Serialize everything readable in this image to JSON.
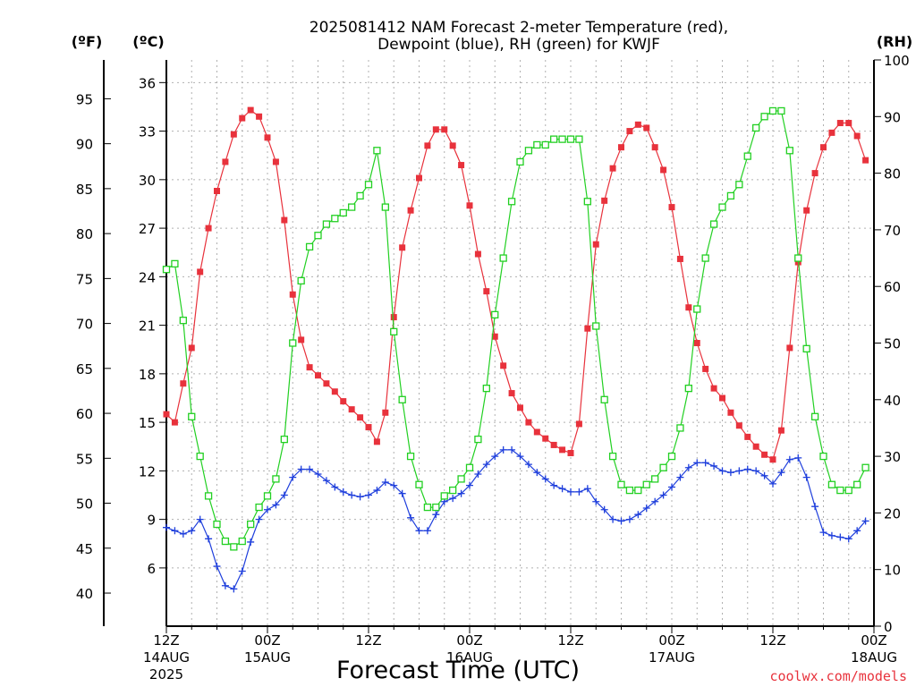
{
  "chart_data": {
    "type": "line",
    "title_line1": "2025081412 NAM Forecast 2-meter Temperature (red),",
    "title_line2": "Dewpoint (blue), RH (green) for KWJF",
    "xlabel": "Forecast Time (UTC)",
    "credit": "coolwx.com/models",
    "x_unit": "forecast hour from 2025-08-14 12Z",
    "x_range": [
      0,
      84
    ],
    "x_ticks": [
      {
        "hour": 0,
        "time": "12Z",
        "date": "14AUG",
        "year": "2025"
      },
      {
        "hour": 12,
        "time": "00Z",
        "date": "15AUG",
        "year": ""
      },
      {
        "hour": 24,
        "time": "12Z",
        "date": "",
        "year": ""
      },
      {
        "hour": 36,
        "time": "00Z",
        "date": "16AUG",
        "year": ""
      },
      {
        "hour": 48,
        "time": "12Z",
        "date": "",
        "year": ""
      },
      {
        "hour": 60,
        "time": "00Z",
        "date": "17AUG",
        "year": ""
      },
      {
        "hour": 72,
        "time": "12Z",
        "date": "",
        "year": ""
      },
      {
        "hour": 84,
        "time": "00Z",
        "date": "18AUG",
        "year": ""
      }
    ],
    "axes": {
      "celsius": {
        "label": "(ºC)",
        "ticks": [
          "6",
          "9",
          "12",
          "15",
          "18",
          "21",
          "24",
          "27",
          "30",
          "33",
          "36"
        ]
      },
      "fahrenheit": {
        "label": "(ºF)",
        "ticks": [
          "40",
          "45",
          "50",
          "55",
          "60",
          "65",
          "70",
          "75",
          "80",
          "85",
          "90",
          "95"
        ]
      },
      "rh": {
        "label": "(RH)",
        "ticks": [
          "0",
          "10",
          "20",
          "30",
          "40",
          "50",
          "60",
          "70",
          "80",
          "90",
          "100"
        ],
        "range": [
          0,
          100
        ]
      },
      "temp_range_c": [
        2.4,
        37.4
      ]
    },
    "grid": true,
    "series": [
      {
        "name": "Temperature",
        "unit": "°C",
        "color": "#e8323c",
        "marker": "filled-square",
        "values": [
          15.5,
          15.0,
          17.4,
          19.6,
          24.3,
          27.0,
          29.3,
          31.1,
          32.8,
          33.8,
          34.3,
          33.9,
          32.6,
          31.1,
          27.5,
          22.9,
          20.1,
          18.4,
          17.9,
          17.4,
          16.9,
          16.3,
          15.8,
          15.3,
          14.7,
          13.8,
          15.6,
          21.5,
          25.8,
          28.1,
          30.1,
          32.1,
          33.1,
          33.1,
          32.1,
          30.9,
          28.4,
          25.4,
          23.1,
          20.3,
          18.5,
          16.8,
          15.9,
          15.0,
          14.4,
          14.0,
          13.6,
          13.3,
          13.1,
          14.9,
          20.8,
          26.0,
          28.7,
          30.7,
          32.0,
          33.0,
          33.4,
          33.2,
          32.0,
          30.6,
          28.3,
          25.1,
          22.1,
          19.9,
          18.3,
          17.1,
          16.5,
          15.6,
          14.8,
          14.1,
          13.5,
          13.0,
          12.7,
          14.5,
          19.6,
          24.9,
          28.1,
          30.4,
          32.0,
          32.9,
          33.5,
          33.5,
          32.7,
          31.2
        ]
      },
      {
        "name": "Dewpoint",
        "unit": "°C",
        "color": "#1f3fdc",
        "marker": "plus",
        "values": [
          8.5,
          8.3,
          8.1,
          8.3,
          9.0,
          7.8,
          6.1,
          4.9,
          4.7,
          5.8,
          7.6,
          9.0,
          9.6,
          9.9,
          10.5,
          11.6,
          12.1,
          12.1,
          11.8,
          11.4,
          11.0,
          10.7,
          10.5,
          10.4,
          10.5,
          10.8,
          11.3,
          11.1,
          10.6,
          9.1,
          8.3,
          8.3,
          9.3,
          10.1,
          10.3,
          10.6,
          11.1,
          11.8,
          12.4,
          12.9,
          13.3,
          13.3,
          12.9,
          12.4,
          11.9,
          11.5,
          11.1,
          10.9,
          10.7,
          10.7,
          10.9,
          10.1,
          9.6,
          9.0,
          8.9,
          9.0,
          9.3,
          9.7,
          10.1,
          10.5,
          11.0,
          11.6,
          12.2,
          12.5,
          12.5,
          12.3,
          12.0,
          11.9,
          12.0,
          12.1,
          12.0,
          11.7,
          11.2,
          11.9,
          12.7,
          12.8,
          11.6,
          9.8,
          8.2,
          8.0,
          7.9,
          7.8,
          8.3,
          8.9
        ]
      },
      {
        "name": "RH",
        "unit": "%",
        "color": "#22d022",
        "marker": "open-square",
        "values": [
          63,
          64,
          54,
          37,
          30,
          23,
          18,
          15,
          14,
          15,
          18,
          21,
          23,
          26,
          33,
          50,
          61,
          67,
          69,
          71,
          72,
          73,
          74,
          76,
          78,
          84,
          74,
          52,
          40,
          30,
          25,
          21,
          21,
          23,
          24,
          26,
          28,
          33,
          42,
          55,
          65,
          75,
          82,
          84,
          85,
          85,
          86,
          86,
          86,
          86,
          75,
          53,
          40,
          30,
          25,
          24,
          24,
          25,
          26,
          28,
          30,
          35,
          42,
          56,
          65,
          71,
          74,
          76,
          78,
          83,
          88,
          90,
          91,
          91,
          84,
          65,
          49,
          37,
          30,
          25,
          24,
          24,
          25,
          28
        ]
      }
    ]
  }
}
